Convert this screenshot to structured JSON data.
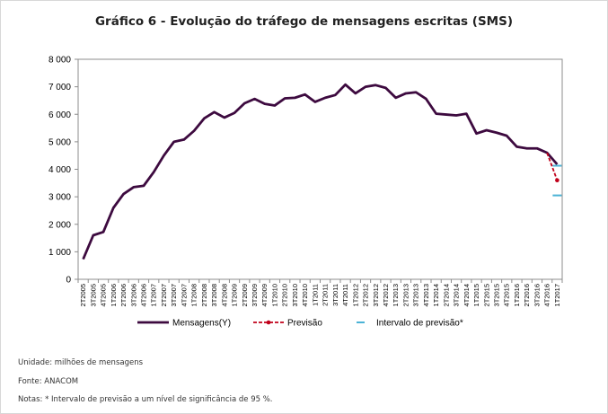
{
  "title": "Gráfico 6 - Evolução do tráfego de mensagens escritas (SMS)",
  "notes": {
    "unit": "Unidade: milhões de mensagens",
    "source": "Fonte: ANACOM",
    "footnote": "Notas: * Intervalo de previsão a um nível de significância de 95 %."
  },
  "colors": {
    "series": "#3d0a3f",
    "forecast": "#c0001a",
    "interval": "#4bb3d6"
  },
  "chart_data": {
    "type": "line",
    "title": "Gráfico 6 - Evolução do tráfego de mensagens escritas (SMS)",
    "xlabel": "",
    "ylabel": "",
    "ylim": [
      0,
      8000
    ],
    "yticks": [
      0,
      1000,
      2000,
      3000,
      4000,
      5000,
      6000,
      7000,
      8000
    ],
    "ytick_labels": [
      "0",
      "1 000",
      "2 000",
      "3 000",
      "4 000",
      "5 000",
      "6 000",
      "7 000",
      "8 000"
    ],
    "categories": [
      "2T2005",
      "3T2005",
      "4T2005",
      "1T2006",
      "2T2006",
      "3T2006",
      "4T2006",
      "1T2007",
      "2T2007",
      "3T2007",
      "4T2007",
      "1T2008",
      "2T2008",
      "3T2008",
      "4T2008",
      "1T2009",
      "2T2009",
      "3T2009",
      "4T2009",
      "1T2010",
      "2T2010",
      "3T2010",
      "4T2010",
      "1T2011",
      "2T2011",
      "3T2011",
      "4T2011",
      "1T2012",
      "2T2012",
      "3T2012",
      "4T2012",
      "1T2013",
      "2T2013",
      "3T2013",
      "4T2013",
      "1T2014",
      "2T2014",
      "3T2014",
      "4T2014",
      "1T2015",
      "2T2015",
      "3T2015",
      "4T2015",
      "1T2016",
      "2T2016",
      "3T2016",
      "4T2016",
      "1T2017"
    ],
    "series": [
      {
        "name": "Mensagens(Y)",
        "values": [
          730,
          1600,
          1720,
          2600,
          3100,
          3350,
          3400,
          3900,
          4500,
          5000,
          5080,
          5400,
          5850,
          6080,
          5880,
          6050,
          6400,
          6560,
          6380,
          6320,
          6580,
          6600,
          6720,
          6450,
          6600,
          6700,
          7080,
          6760,
          7000,
          7060,
          6960,
          6600,
          6760,
          6800,
          6560,
          6020,
          5990,
          5960,
          6020,
          5300,
          5420,
          5330,
          5220,
          4820,
          4760,
          4760,
          4600,
          4180
        ]
      },
      {
        "name": "Previsão",
        "values": [
          null,
          null,
          null,
          null,
          null,
          null,
          null,
          null,
          null,
          null,
          null,
          null,
          null,
          null,
          null,
          null,
          null,
          null,
          null,
          null,
          null,
          null,
          null,
          null,
          null,
          null,
          null,
          null,
          null,
          null,
          null,
          null,
          null,
          null,
          null,
          null,
          null,
          null,
          null,
          null,
          null,
          null,
          null,
          null,
          null,
          null,
          4600,
          3600
        ]
      }
    ],
    "interval": {
      "name": "Intervalo de previsão*",
      "category": "1T2017",
      "lower": 3050,
      "upper": 4130
    },
    "legend": [
      "Mensagens(Y)",
      "Previsão",
      "Intervalo de previsão*"
    ],
    "legend_position": "bottom",
    "grid": false
  }
}
